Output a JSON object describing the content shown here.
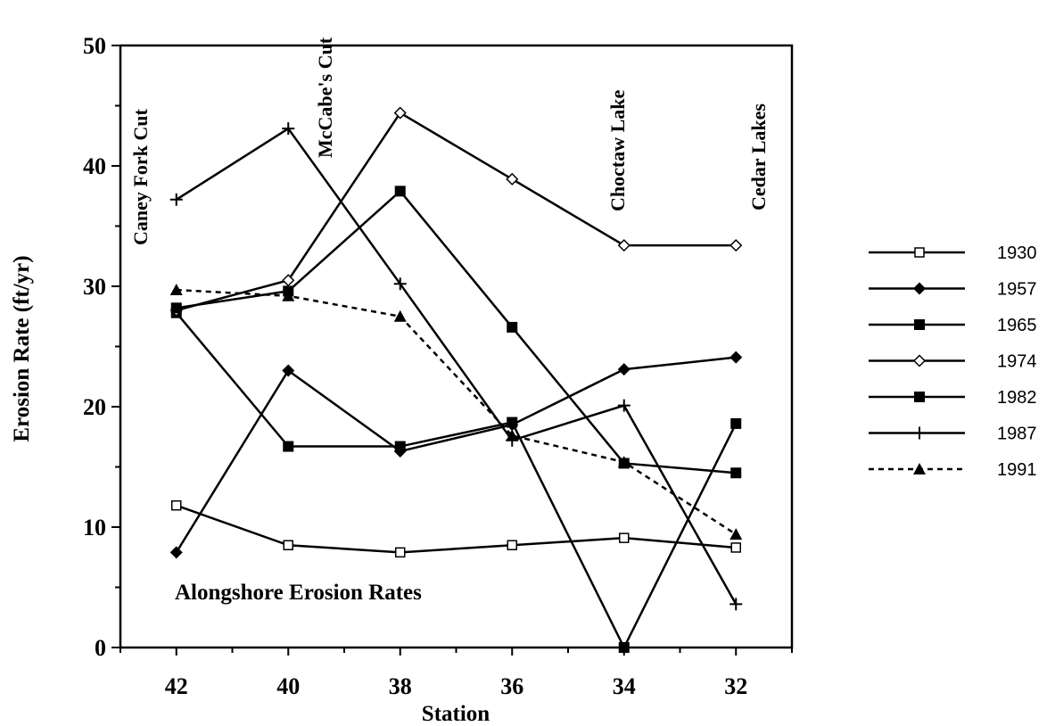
{
  "chart_data": {
    "type": "line",
    "title": "Alongshore Erosion Rates",
    "xlabel": "Station",
    "ylabel": "Erosion Rate (ft/yr)",
    "x": [
      42,
      40,
      38,
      36,
      34,
      32
    ],
    "x_reversed": true,
    "xlim": [
      43,
      31
    ],
    "ylim": [
      0,
      50
    ],
    "yticks": [
      0,
      10,
      20,
      30,
      40,
      50
    ],
    "grid": false,
    "legend_position": "right",
    "annotations": [
      {
        "text": "Caney Fork Cut",
        "x": 42
      },
      {
        "text": "McCabe's Cut",
        "x": 40
      },
      {
        "text": "Choctaw Lake",
        "x": 34
      },
      {
        "text": "Cedar Lakes",
        "x": 32
      }
    ],
    "series": [
      {
        "name": "1930",
        "marker": "open-square",
        "dash": "solid",
        "values": [
          11.8,
          8.5,
          7.9,
          8.5,
          9.1,
          8.3
        ]
      },
      {
        "name": "1957",
        "marker": "filled-diamond",
        "dash": "solid",
        "values": [
          7.9,
          23.0,
          16.3,
          18.5,
          23.1,
          24.1
        ]
      },
      {
        "name": "1965",
        "marker": "filled-square",
        "dash": "solid",
        "values": [
          27.8,
          16.7,
          16.7,
          18.7,
          0.0,
          18.6
        ]
      },
      {
        "name": "1974",
        "marker": "open-diamond",
        "dash": "solid",
        "values": [
          28.0,
          30.5,
          44.4,
          38.9,
          33.4,
          33.4
        ]
      },
      {
        "name": "1982",
        "marker": "filled-square",
        "dash": "solid",
        "values": [
          28.2,
          29.6,
          37.9,
          26.6,
          15.3,
          14.5
        ]
      },
      {
        "name": "1987",
        "marker": "plus",
        "dash": "solid",
        "values": [
          37.2,
          43.1,
          30.2,
          17.2,
          20.1,
          3.6
        ]
      },
      {
        "name": "1991",
        "marker": "filled-triangle",
        "dash": "dashed",
        "values": [
          29.7,
          29.2,
          27.5,
          17.6,
          15.4,
          9.4
        ]
      }
    ]
  }
}
